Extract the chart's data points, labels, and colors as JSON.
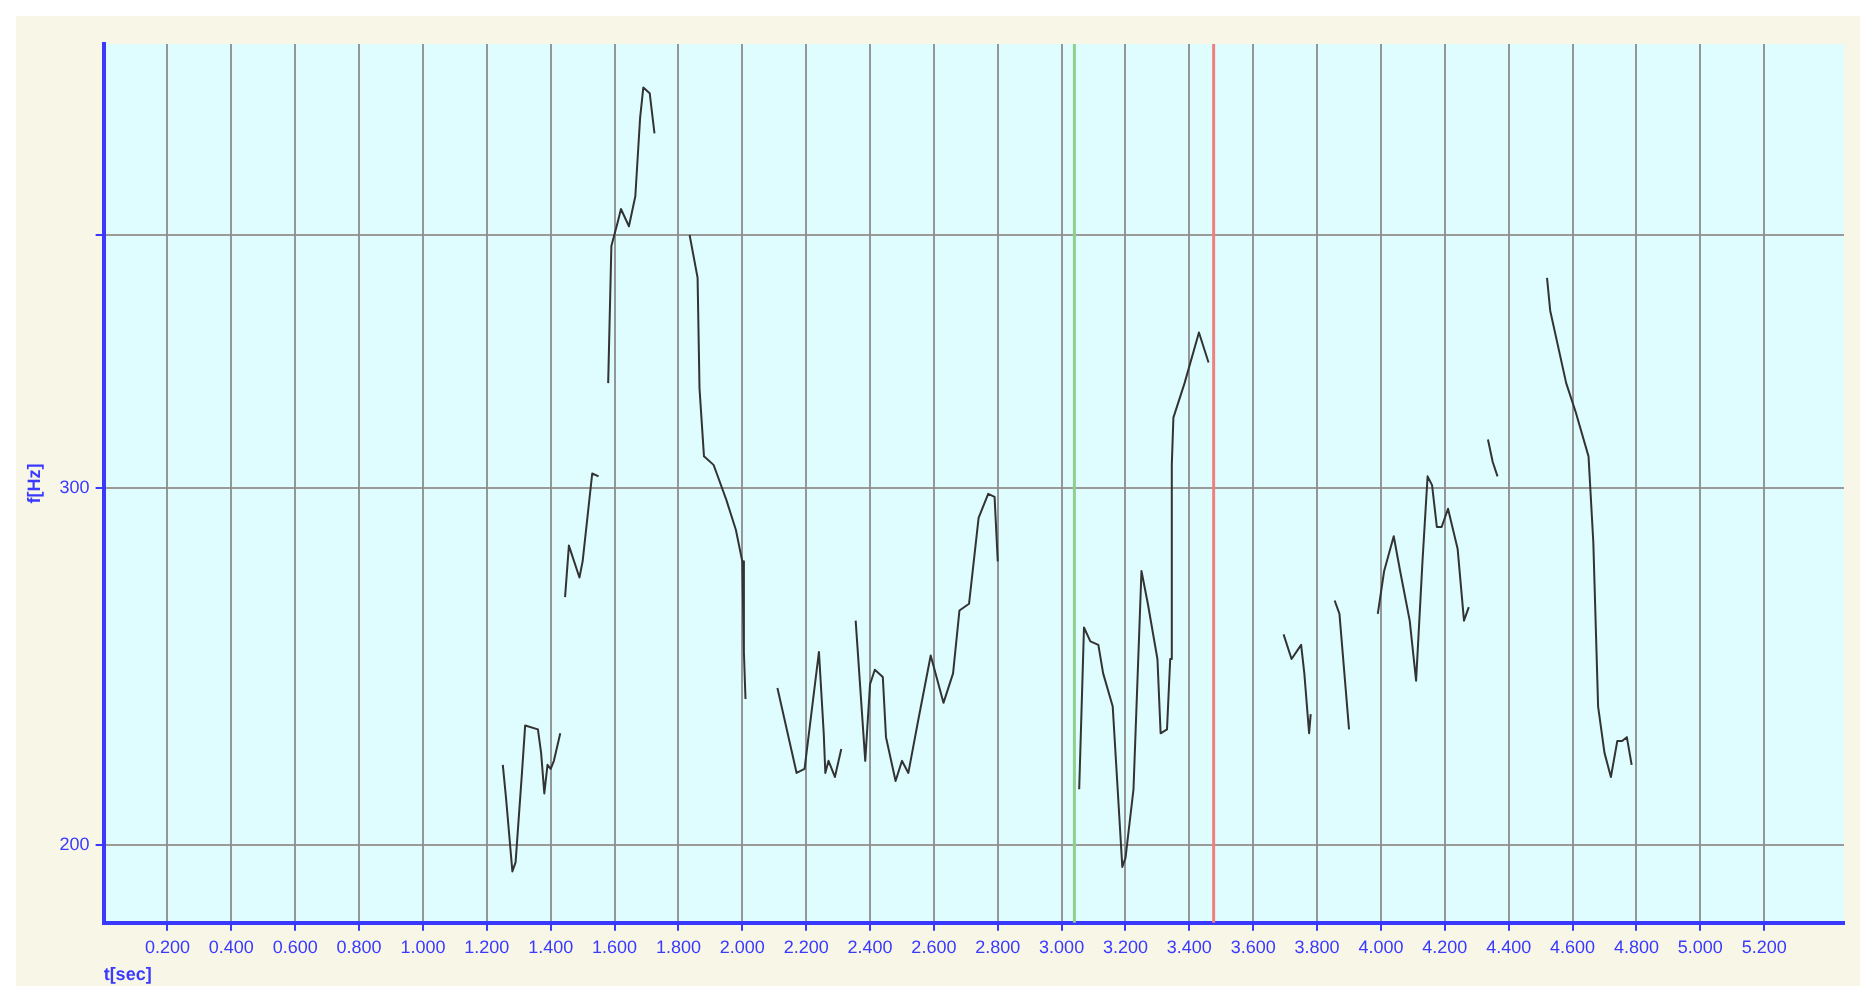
{
  "chart_data": {
    "type": "line",
    "xlabel": "t[sec]",
    "ylabel": "f[Hz]",
    "log": "y",
    "grid": true,
    "legend": false,
    "marker": "none",
    "line_style": "solid",
    "xlim": [
      0,
      5.45
    ],
    "xticks": [
      {
        "value": 0.2,
        "label": "0.200"
      },
      {
        "value": 0.4,
        "label": "0.400"
      },
      {
        "value": 0.6,
        "label": "0.600"
      },
      {
        "value": 0.8,
        "label": "0.800"
      },
      {
        "value": 1.0,
        "label": "1.000"
      },
      {
        "value": 1.2,
        "label": "1.200"
      },
      {
        "value": 1.4,
        "label": "1.400"
      },
      {
        "value": 1.6,
        "label": "1.600"
      },
      {
        "value": 1.8,
        "label": "1.800"
      },
      {
        "value": 2.0,
        "label": "2.000"
      },
      {
        "value": 2.2,
        "label": "2.200"
      },
      {
        "value": 2.4,
        "label": "2.400"
      },
      {
        "value": 2.6,
        "label": "2.600"
      },
      {
        "value": 2.8,
        "label": "2.800"
      },
      {
        "value": 3.0,
        "label": "3.000"
      },
      {
        "value": 3.2,
        "label": "3.200"
      },
      {
        "value": 3.4,
        "label": "3.400"
      },
      {
        "value": 3.6,
        "label": "3.600"
      },
      {
        "value": 3.8,
        "label": "3.800"
      },
      {
        "value": 4.0,
        "label": "4.000"
      },
      {
        "value": 4.2,
        "label": "4.200"
      },
      {
        "value": 4.4,
        "label": "4.400"
      },
      {
        "value": 4.6,
        "label": "4.600"
      },
      {
        "value": 4.8,
        "label": "4.800"
      },
      {
        "value": 5.0,
        "label": "5.000"
      },
      {
        "value": 5.2,
        "label": "5.200"
      }
    ],
    "ylim": [
      183,
      497
    ],
    "yticks": [
      200,
      300,
      {
        "value": 400,
        "label": null
      }
    ],
    "ref_lines": [
      {
        "axis": "x",
        "value": 3.04,
        "color": "#8fd08f"
      },
      {
        "axis": "x",
        "value": 3.476,
        "color": "#f08080"
      }
    ],
    "series": [
      {
        "color": "#333333",
        "x": [
          1.25,
          1.26,
          1.28,
          1.29,
          1.31,
          1.32,
          1.36,
          1.37,
          1.38,
          1.39,
          1.4,
          1.41,
          1.43,
          1.437,
          1.445,
          1.457,
          1.49,
          1.5,
          1.53,
          1.55,
          1.565,
          1.58,
          1.59,
          1.61,
          1.62,
          1.645,
          1.665,
          1.68,
          1.69,
          1.71,
          1.725,
          1.78,
          1.835,
          1.86,
          1.866,
          1.88,
          1.91,
          1.92,
          1.95,
          1.98,
          2.0,
          2.005,
          2.01,
          2.06,
          2.11,
          2.17,
          2.195,
          2.24,
          2.255,
          2.26,
          2.27,
          2.29,
          2.31,
          2.33,
          2.355,
          2.385,
          2.4,
          2.415,
          2.44,
          2.45,
          2.48,
          2.5,
          2.52,
          2.55,
          2.59,
          2.63,
          2.66,
          2.68,
          2.71,
          2.74,
          2.77,
          2.79,
          2.8,
          2.93,
          3.055,
          3.07,
          3.09,
          3.115,
          3.13,
          3.16,
          3.19,
          3.2,
          3.225,
          3.25,
          3.27,
          3.3,
          3.31,
          3.33,
          3.34,
          3.345,
          3.35,
          3.385,
          3.43,
          3.46,
          3.58,
          3.695,
          3.72,
          3.75,
          3.76,
          3.775,
          3.78,
          3.82,
          3.855,
          3.87,
          3.9,
          3.95,
          3.99,
          4.01,
          4.04,
          4.06,
          4.09,
          4.11,
          4.13,
          4.146,
          4.16,
          4.175,
          4.19,
          4.21,
          4.24,
          4.26,
          4.275,
          4.3,
          4.335,
          4.35,
          4.365,
          4.44,
          4.52,
          4.53,
          4.58,
          4.61,
          4.65,
          4.665,
          4.68,
          4.7,
          4.72,
          4.74,
          4.755,
          4.77,
          4.785
        ],
        "values": [
          219,
          211,
          194,
          196,
          217,
          229,
          228,
          222,
          212,
          219,
          218,
          220,
          227,
          null,
          265,
          281,
          271,
          276,
          305,
          304,
          null,
          338,
          395,
          406,
          412,
          404,
          418,
          457,
          473,
          470,
          449,
          null,
          400,
          381,
          336,
          311,
          308,
          305,
          296,
          286,
          276,
          249,
          236,
          null,
          239,
          217,
          218,
          249,
          227,
          217,
          220,
          216,
          223,
          null,
          258,
          220,
          240,
          244,
          242,
          226,
          215,
          220,
          217,
          230,
          248,
          235,
          243,
          261,
          263,
          290,
          298,
          297,
          276,
          null,
          213,
          256,
          252,
          251,
          243,
          234,
          195,
          197,
          213,
          273,
          263,
          247,
          227,
          228,
          247,
          308,
          325,
          338,
          358,
          346,
          null,
          254,
          247,
          251,
          243,
          227,
          232,
          null,
          264,
          260,
          228,
          null,
          260,
          273,
          284,
          273,
          258,
          241,
          276,
          304,
          301,
          287,
          287,
          293,
          280,
          258,
          262,
          null,
          317,
          309,
          304,
          null,
          381,
          367,
          338,
          327,
          311,
          282,
          234,
          222,
          216,
          225,
          225,
          226,
          219
        ]
      }
    ]
  }
}
